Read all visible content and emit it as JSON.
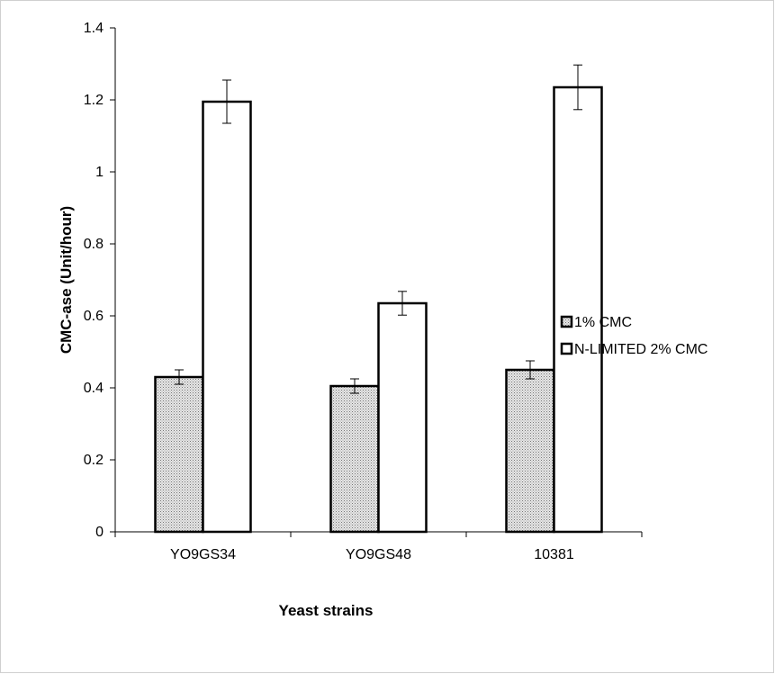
{
  "chart_data": {
    "type": "bar",
    "title": "",
    "xlabel": "Yeast strains",
    "ylabel": "CMC-ase (Unit/hour)",
    "categories": [
      "YO9GS34",
      "YO9GS48",
      "10381"
    ],
    "ylim": [
      0,
      1.4
    ],
    "yticks": [
      "0",
      "0.2",
      "0.4",
      "0.6",
      "0.8",
      "1",
      "1.2",
      "1.4"
    ],
    "grid": false,
    "legend_position": "right",
    "series": [
      {
        "name": "1% CMC",
        "values": [
          0.43,
          0.405,
          0.45
        ],
        "errors": [
          0.02,
          0.02,
          0.025
        ],
        "fill": "dotted-gray"
      },
      {
        "name": "N-LIMITED 2% CMC",
        "values": [
          1.195,
          0.635,
          1.235
        ],
        "errors": [
          0.06,
          0.033,
          0.062
        ],
        "fill": "white"
      }
    ]
  }
}
